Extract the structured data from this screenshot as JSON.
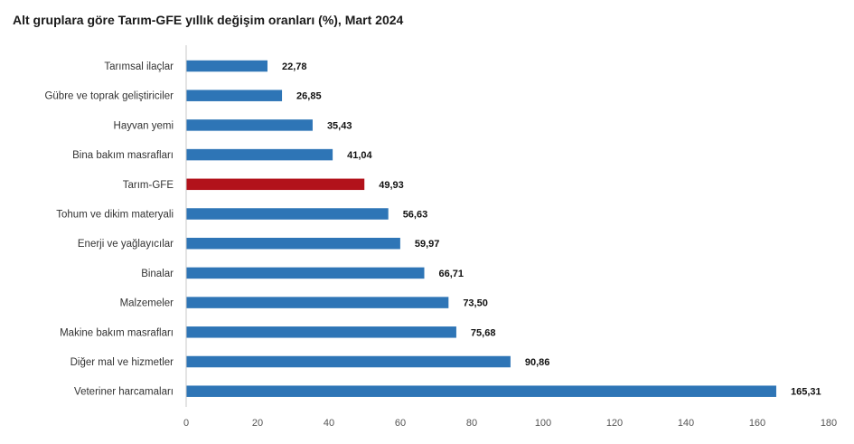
{
  "chart_data": {
    "type": "bar",
    "orientation": "horizontal",
    "title": "Alt gruplara göre Tarım-GFE yıllık değişim oranları (%), Mart 2024",
    "xlabel": "",
    "ylabel": "",
    "xlim": [
      0,
      180
    ],
    "ticks": [
      "0",
      "20",
      "40",
      "60",
      "80",
      "100",
      "120",
      "140",
      "160",
      "180"
    ],
    "tick_values": [
      0,
      20,
      40,
      60,
      80,
      100,
      120,
      140,
      160,
      180
    ],
    "grid": false,
    "legend": "none",
    "categories": [
      "Tarımsal ilaçlar",
      "Gübre ve toprak geliştiriciler",
      "Hayvan yemi",
      "Bina bakım masrafları",
      "Tarım-GFE",
      "Tohum ve dikim materyali",
      "Enerji  ve yağlayıcılar",
      "Binalar",
      "Malzemeler",
      "Makine bakım masrafları",
      "Diğer mal ve hizmetler",
      "Veteriner harcamaları"
    ],
    "values": [
      22.78,
      26.85,
      35.43,
      41.04,
      49.93,
      56.63,
      59.97,
      66.71,
      73.5,
      75.68,
      90.86,
      165.31
    ],
    "value_labels": [
      "22,78",
      "26,85",
      "35,43",
      "41,04",
      "49,93",
      "56,63",
      "59,97",
      "66,71",
      "73,50",
      "75,68",
      "90,86",
      "165,31"
    ],
    "bar_color": "#2e75b6",
    "highlight_color": "#b2121b",
    "highlight_category": "Tarım-GFE"
  }
}
